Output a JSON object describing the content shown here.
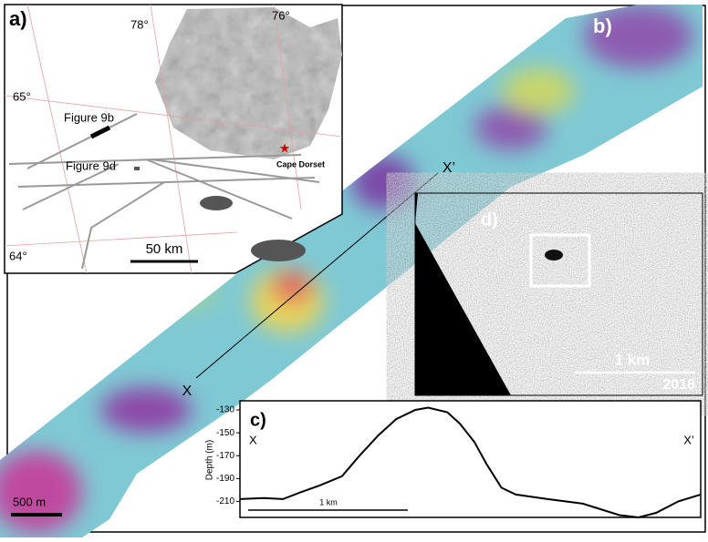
{
  "panel_b": {
    "label": "b)",
    "point_start": "X",
    "point_end": "X’",
    "scale_bar": "500 m"
  },
  "panel_a": {
    "label": "a)",
    "lon_labels": [
      "78°",
      "76°"
    ],
    "lat_labels": [
      "65°",
      "64°"
    ],
    "figure_labels": [
      "Figure 9b",
      "Figure 9d"
    ],
    "town": "Cape Dorset",
    "scale_bar": "50 km"
  },
  "panel_d": {
    "label": "d)",
    "scale_bar": "1 km",
    "year": "2018"
  },
  "panel_c": {
    "label": "c)",
    "y_label": "Depth (m)",
    "point_start": "X",
    "point_end": "X’",
    "scale_bar": "1 km",
    "ylim": [
      -122,
      -224
    ],
    "yticks": [
      -130,
      -150,
      -170,
      -190,
      -210
    ],
    "xlim": [
      0,
      2.89
    ],
    "x": [
      0,
      0.15,
      0.27,
      0.38,
      0.5,
      0.64,
      0.75,
      0.87,
      0.98,
      1.1,
      1.18,
      1.3,
      1.38,
      1.47,
      1.55,
      1.64,
      1.73,
      1.93,
      2.15,
      2.38,
      2.5,
      2.61,
      2.75,
      2.89
    ],
    "values": [
      -208,
      -207,
      -208,
      -202,
      -196,
      -188,
      -170,
      -152,
      -138,
      -130,
      -128,
      -132,
      -142,
      -158,
      -178,
      -198,
      -204,
      -208,
      -212,
      -222,
      -224,
      -220,
      -210,
      -204
    ]
  }
}
